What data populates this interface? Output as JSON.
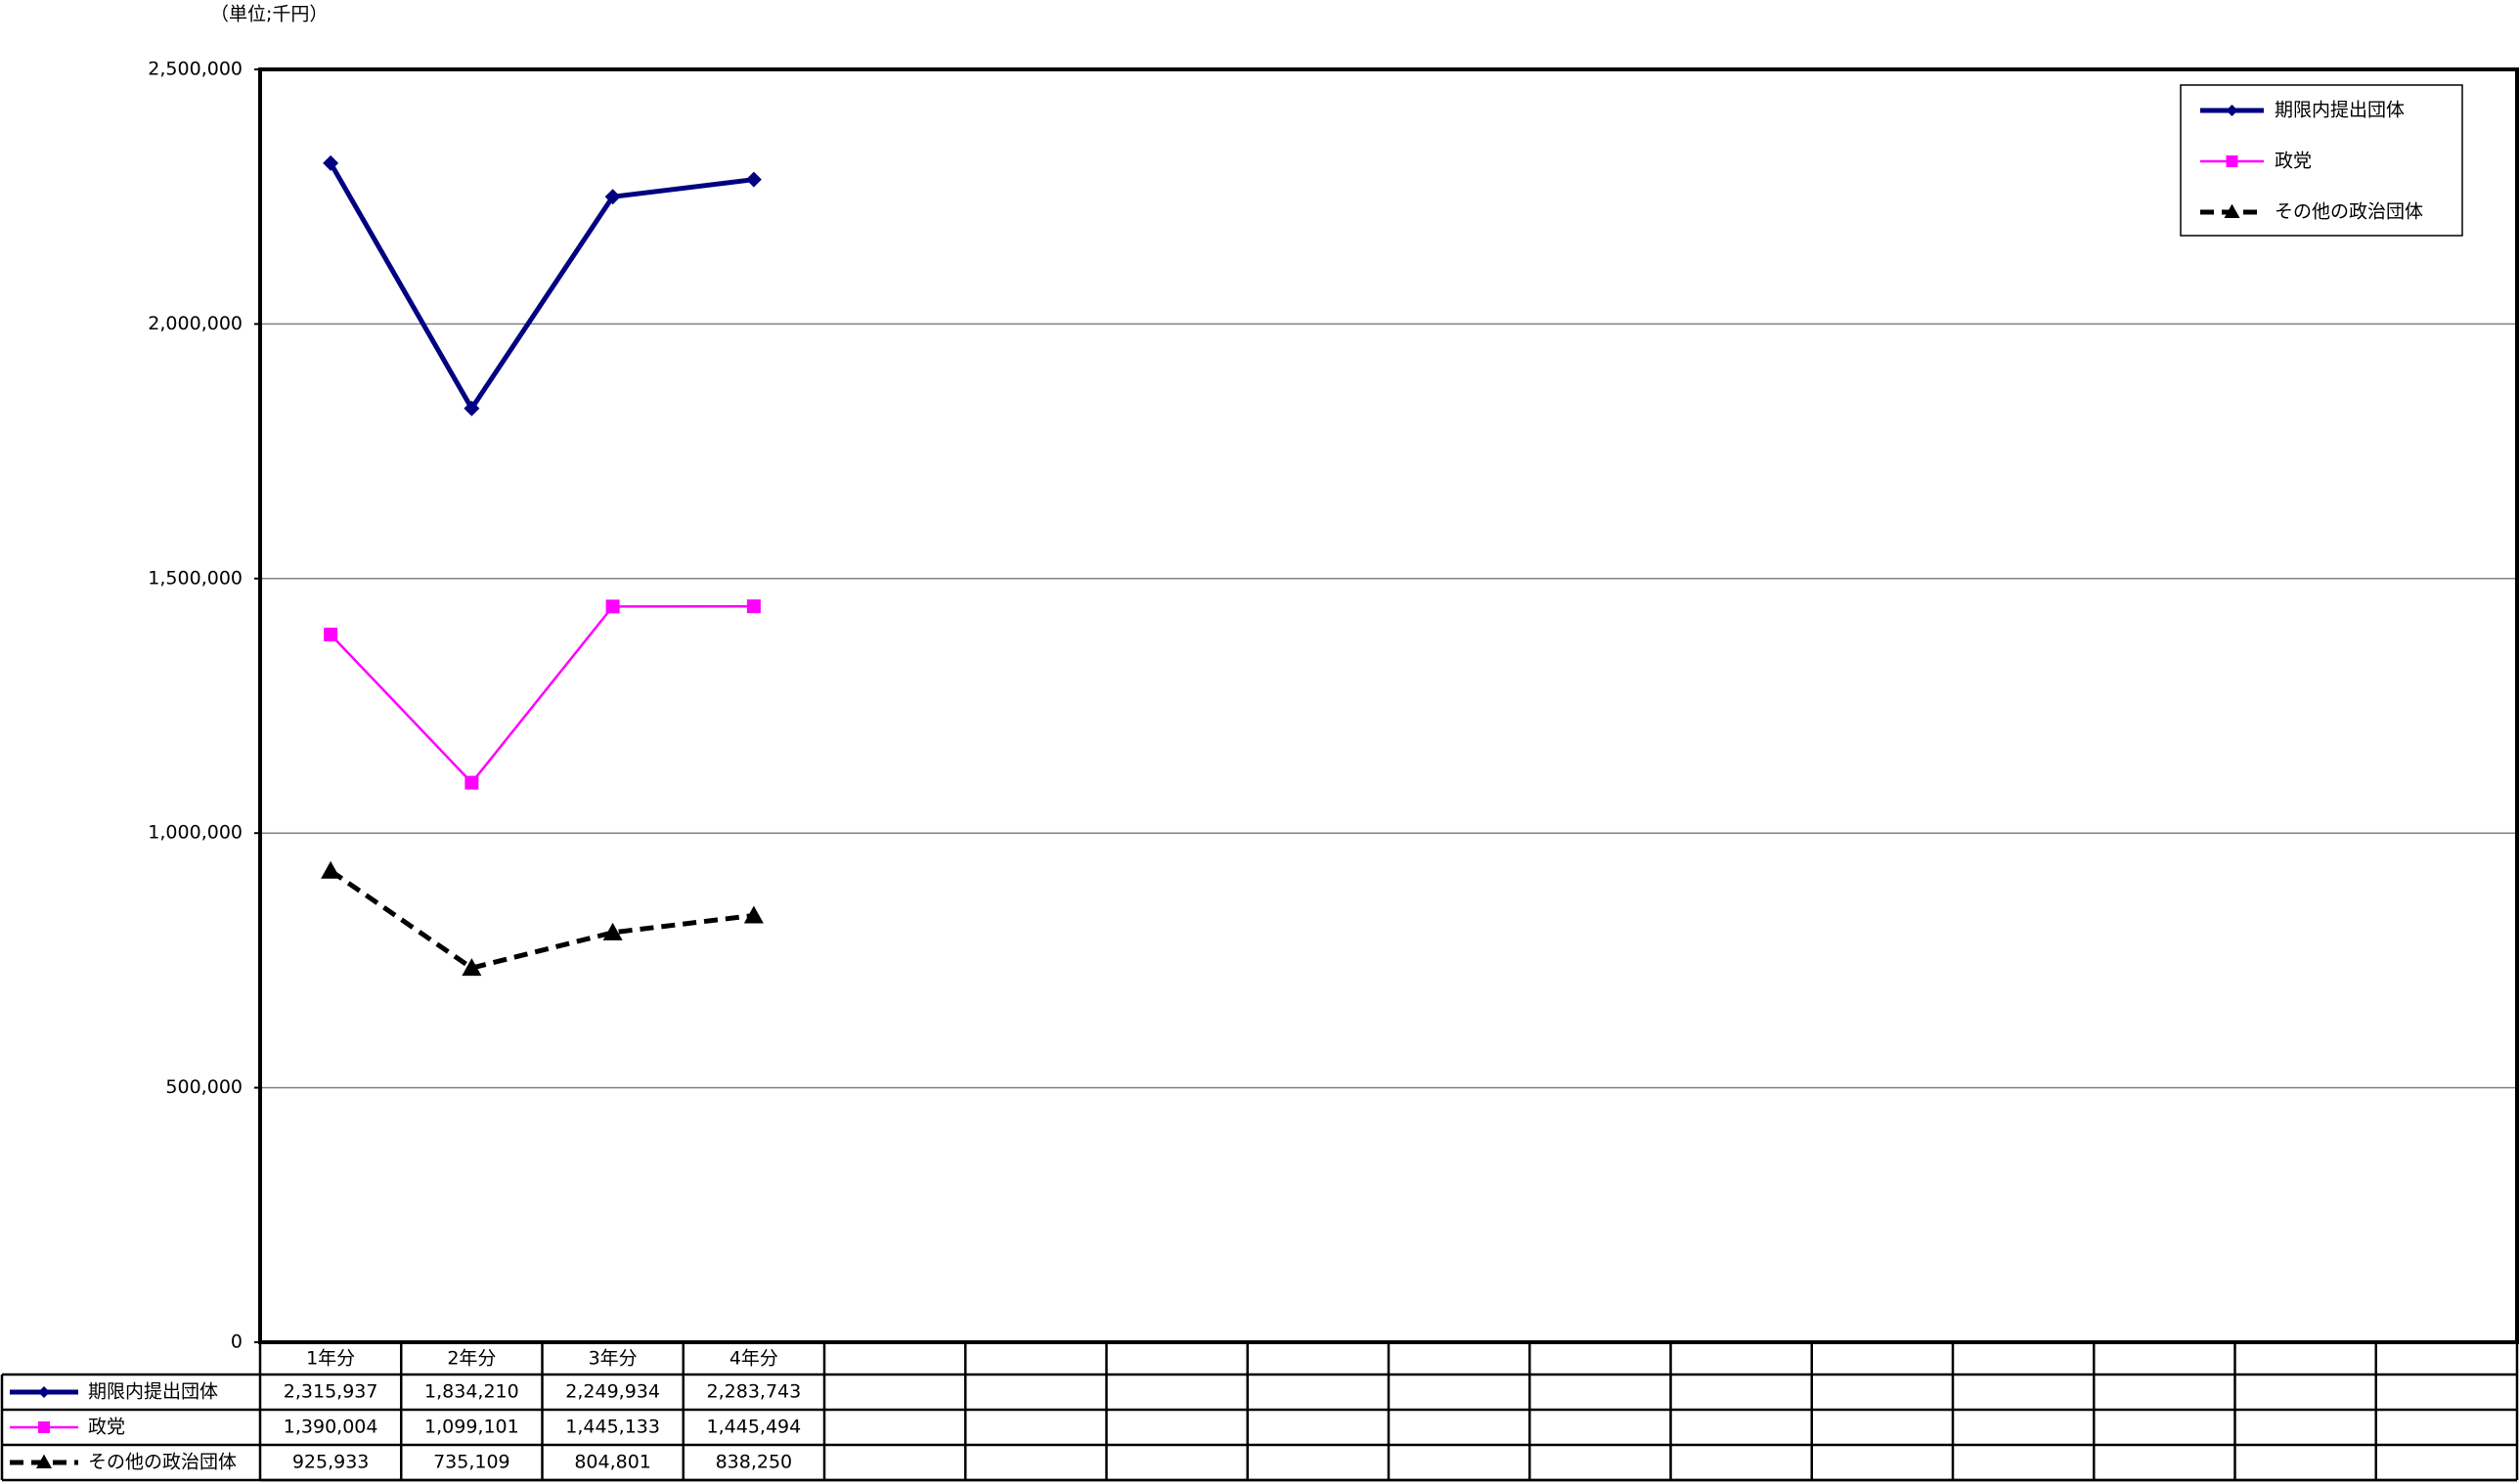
{
  "chart_data": {
    "type": "line",
    "subtitle": "（単位;千円）",
    "categories": [
      "1年分",
      "2年分",
      "3年分",
      "4年分",
      null,
      null,
      null,
      null,
      null,
      null,
      null,
      null,
      null,
      null,
      null,
      null
    ],
    "series": [
      {
        "name": "期限内提出団体",
        "color": "#000080",
        "marker": "diamond",
        "dash": false,
        "values": [
          2315937,
          1834210,
          2249934,
          2283743,
          null,
          null,
          null,
          null,
          null,
          null,
          null,
          null,
          null,
          null,
          null,
          null
        ],
        "value_labels": [
          "2,315,937",
          "1,834,210",
          "2,249,934",
          "2,283,743",
          null,
          null,
          null,
          null,
          null,
          null,
          null,
          null,
          null,
          null,
          null,
          null
        ]
      },
      {
        "name": "政党",
        "color": "#ff00ff",
        "marker": "square",
        "dash": false,
        "values": [
          1390004,
          1099101,
          1445133,
          1445494,
          null,
          null,
          null,
          null,
          null,
          null,
          null,
          null,
          null,
          null,
          null,
          null
        ],
        "value_labels": [
          "1,390,004",
          "1,099,101",
          "1,445,133",
          "1,445,494",
          null,
          null,
          null,
          null,
          null,
          null,
          null,
          null,
          null,
          null,
          null,
          null
        ]
      },
      {
        "name": "その他の政治団体",
        "color": "#000000",
        "marker": "triangle",
        "dash": true,
        "values": [
          925933,
          735109,
          804801,
          838250,
          null,
          null,
          null,
          null,
          null,
          null,
          null,
          null,
          null,
          null,
          null,
          null
        ],
        "value_labels": [
          "925,933",
          "735,109",
          "804,801",
          "838,250",
          null,
          null,
          null,
          null,
          null,
          null,
          null,
          null,
          null,
          null,
          null,
          null
        ]
      }
    ],
    "ylim": [
      0,
      2500000
    ],
    "yticks": [
      0,
      {
        "value": 500000,
        "label": "500,000"
      },
      {
        "value": 1000000,
        "label": "1,000,000"
      },
      {
        "value": 1500000,
        "label": "1,500,000"
      },
      {
        "value": 2000000,
        "label": "2,000,000"
      },
      {
        "value": 2500000,
        "label": "2,500,000"
      }
    ],
    "grid": true,
    "legend": "top-right",
    "data_table": true
  }
}
